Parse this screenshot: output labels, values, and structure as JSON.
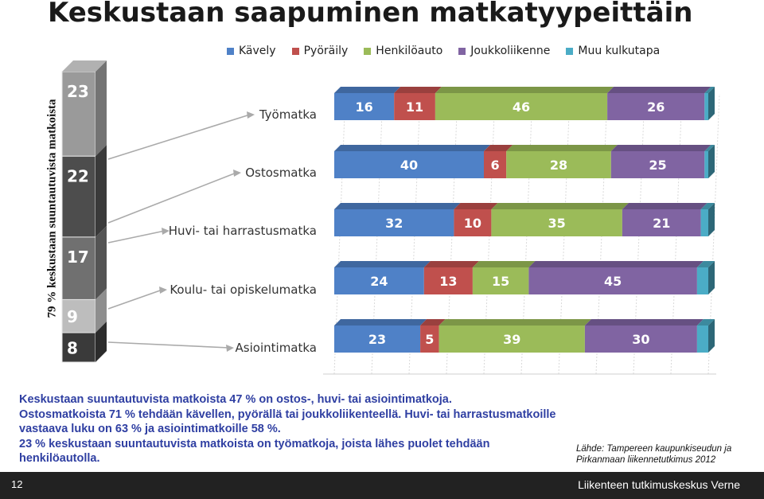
{
  "title": "Keskustaan saapuminen matkatyypeittäin",
  "y_axis_label": "79 % keskustaan suuntautuvista matkoista",
  "legend": [
    {
      "label": "Kävely",
      "color": "#4f81c7"
    },
    {
      "label": "Pyöräily",
      "color": "#c0504d"
    },
    {
      "label": "Henkilöauto",
      "color": "#9bbb59"
    },
    {
      "label": "Joukkoliikenne",
      "color": "#8064a2"
    },
    {
      "label": "Muu kulkutapa",
      "color": "#4bacc6"
    }
  ],
  "chart_data": [
    {
      "type": "bar",
      "orientation": "vertical-stacked",
      "title": "Keskustaan suuntautuvat matkat",
      "segments": [
        {
          "trip": "Työmatka",
          "value": 23
        },
        {
          "trip": "Ostosmatka",
          "value": 22
        },
        {
          "trip": "Huvi- tai harrastusmatka",
          "value": 17
        },
        {
          "trip": "Koulu- tai opiskelumatka",
          "value": 9
        },
        {
          "trip": "Asiointimatka",
          "value": 8
        }
      ]
    },
    {
      "type": "bar",
      "orientation": "horizontal-stacked",
      "categories": [
        "Työmatka",
        "Ostosmatka",
        "Huvi- tai harrastusmatka",
        "Koulu- tai opiskelumatka",
        "Asiointimatka"
      ],
      "series": [
        {
          "name": "Kävely",
          "values": [
            16,
            40,
            32,
            24,
            23
          ]
        },
        {
          "name": "Pyöräily",
          "values": [
            11,
            6,
            10,
            13,
            5
          ]
        },
        {
          "name": "Henkilöauto",
          "values": [
            46,
            28,
            35,
            15,
            39
          ]
        },
        {
          "name": "Joukkoliikenne",
          "values": [
            26,
            25,
            21,
            45,
            30
          ]
        },
        {
          "name": "Muu kulkutapa",
          "values": [
            1,
            1,
            2,
            3,
            3
          ]
        }
      ],
      "xlim": [
        0,
        100
      ]
    }
  ],
  "summary": [
    "Keskustaan suuntautuvista matkoista 47 % on ostos-, huvi- tai asiointimatkoja.",
    "Ostosmatkoista 71 % tehdään kävellen, pyörällä tai joukkoliikenteellä. Huvi- tai harrastusmatkoille vastaava luku on 63 % ja asiointimatkoille 58 %.",
    "23 % keskustaan suuntautuvista matkoista on työmatkoja, joista lähes puolet tehdään henkilöautolla."
  ],
  "source": {
    "line1": "Lähde: Tampereen kaupunkiseudun ja",
    "line2": "Pirkanmaan liikennetutkimus 2012"
  },
  "footer": {
    "page_number": "12",
    "organization": "Liikenteen tutkimuskeskus Verne"
  }
}
